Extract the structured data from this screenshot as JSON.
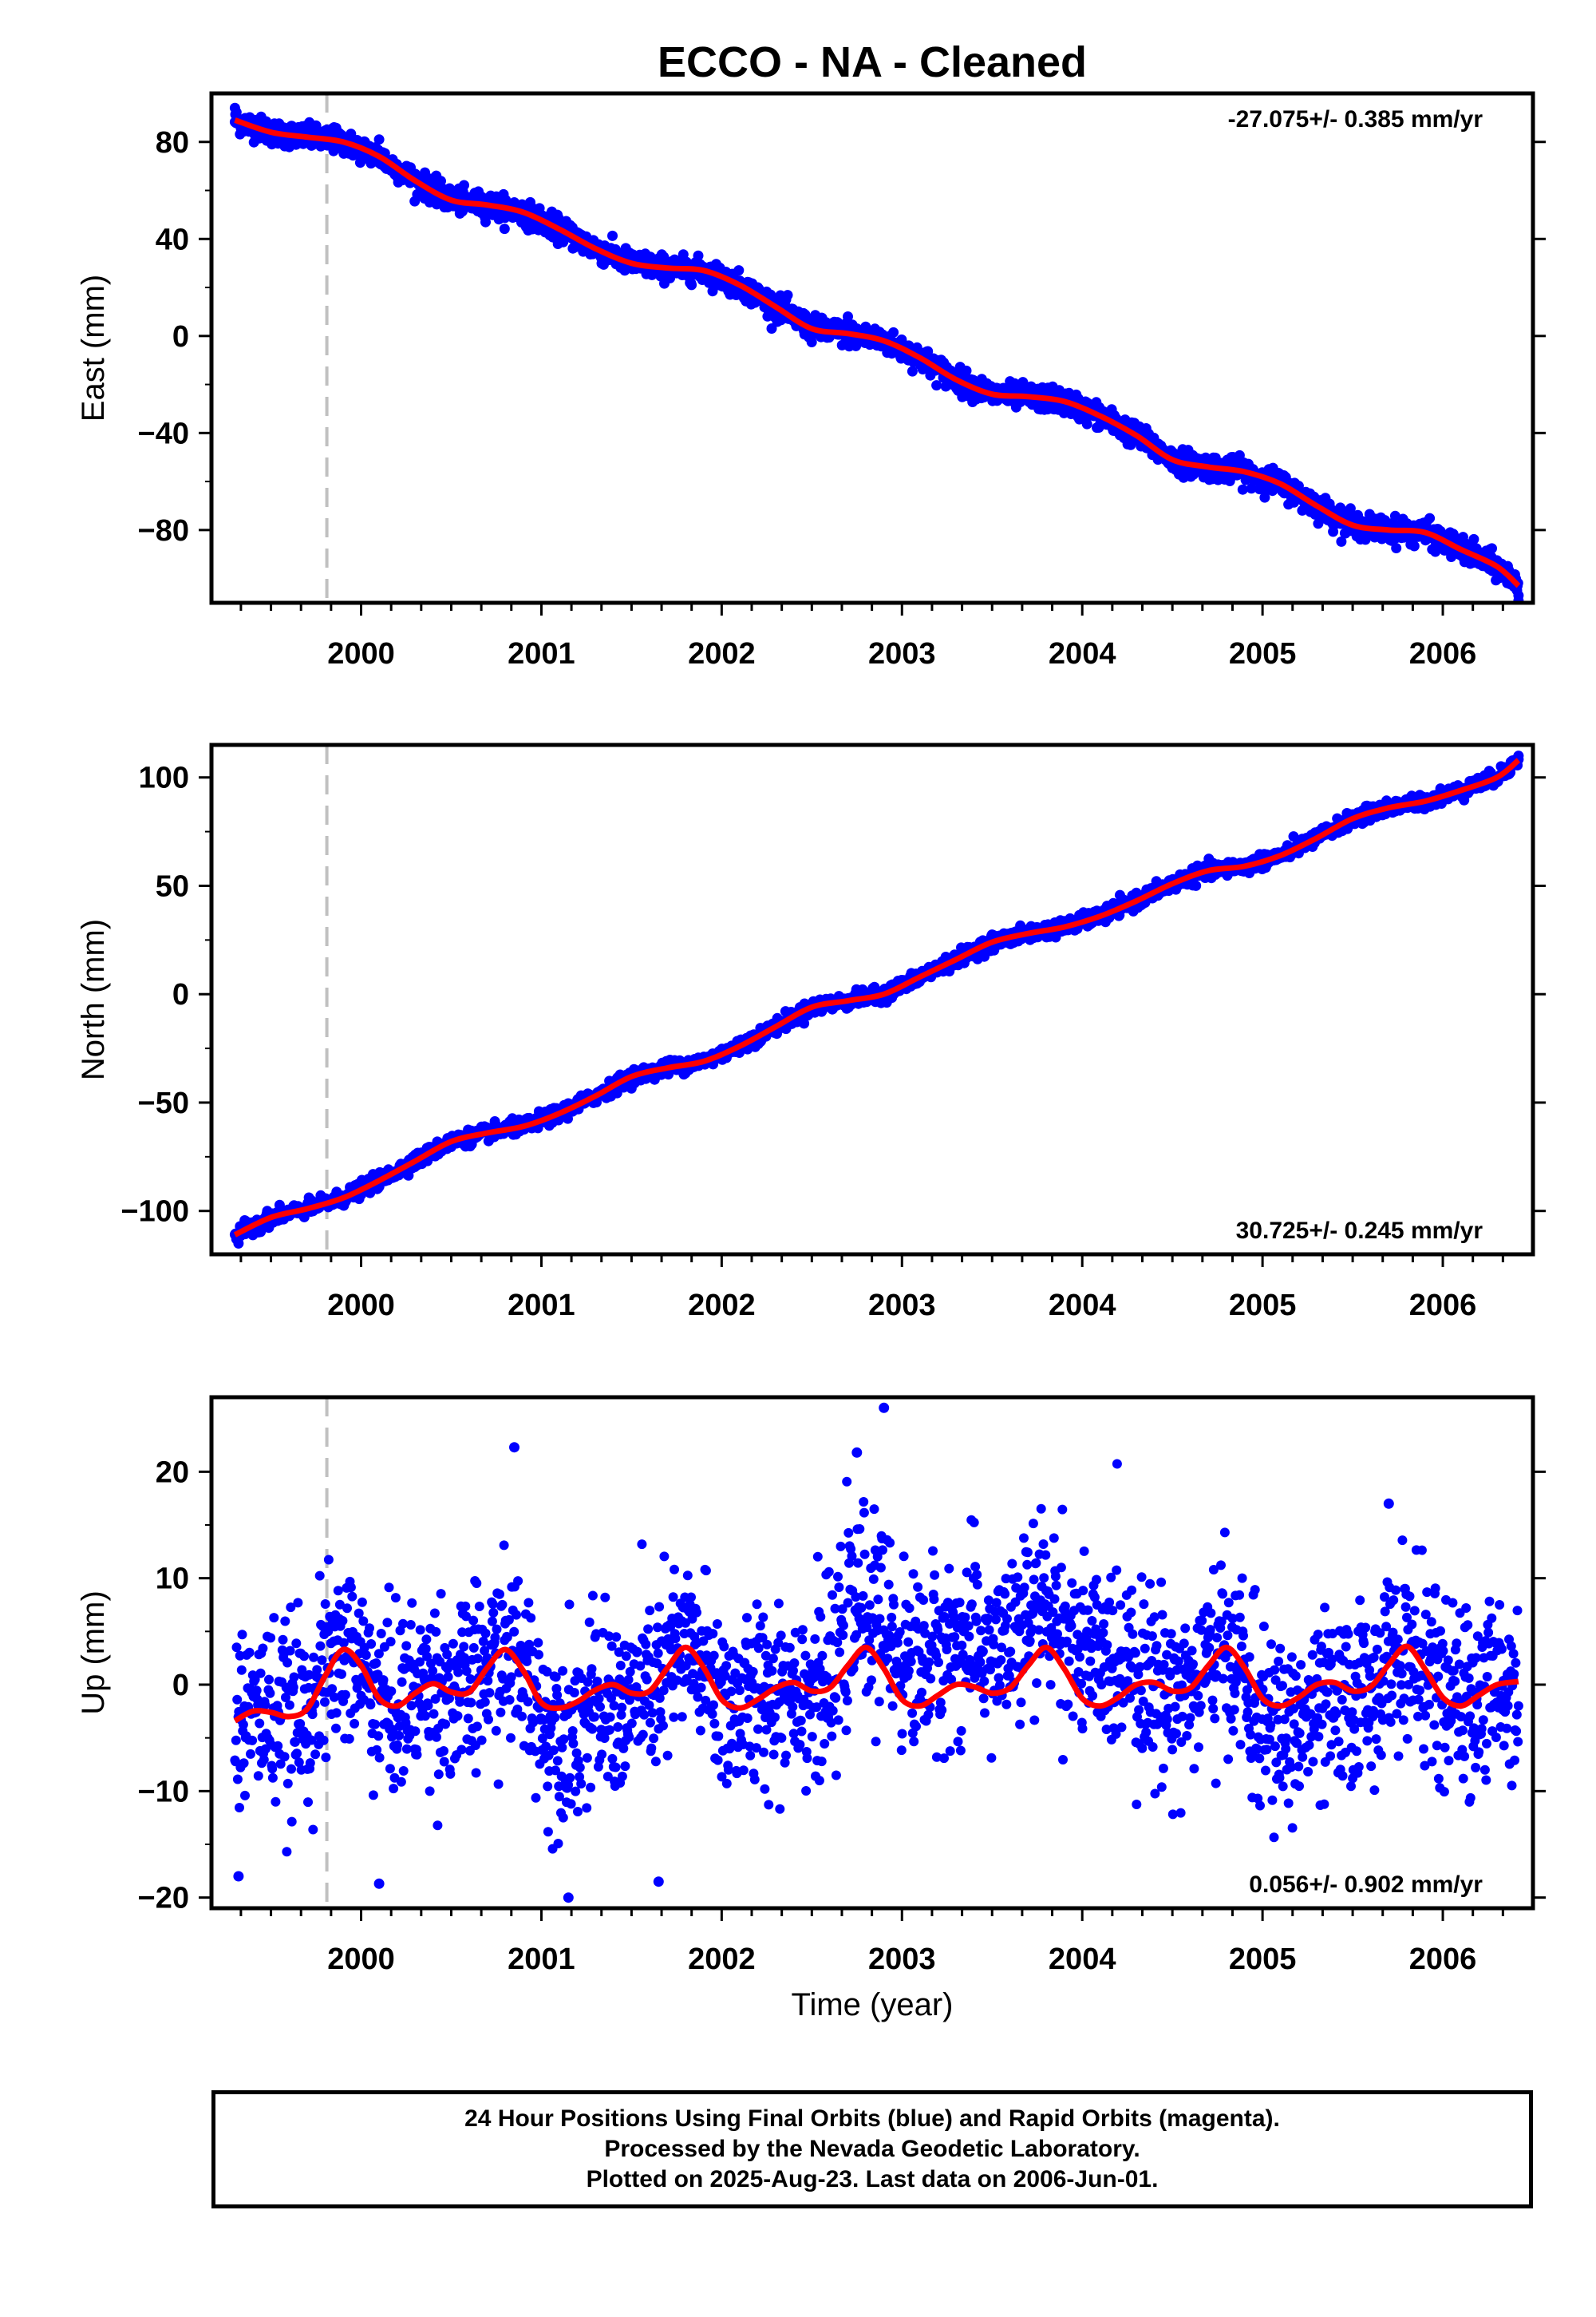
{
  "title": "ECCO  - NA - Cleaned",
  "colors": {
    "points": "#0000ff",
    "fit": "#ff0000",
    "marker": "#c0c0c0",
    "frame": "#000000"
  },
  "chart_data": [
    {
      "type": "scatter",
      "ylabel": "East (mm)",
      "xlabel": "",
      "xlim": [
        1999.17,
        2006.5
      ],
      "ylim": [
        -110,
        100
      ],
      "yticks": [
        -80,
        -40,
        0,
        40,
        80
      ],
      "yticklabels": [
        "−80",
        "−40",
        "0",
        "40",
        "80"
      ],
      "xticks": [
        2000,
        2001,
        2002,
        2003,
        2004,
        2005,
        2006
      ],
      "xticklabels": [
        "2000",
        "2001",
        "2002",
        "2003",
        "2004",
        "2005",
        "2006"
      ],
      "marker_line_x": 1999.81,
      "rate": "-27.075+/- 0.385 mm/yr",
      "rate_position": "top-right",
      "trend_x": [
        1999.3,
        1999.5,
        1999.7,
        1999.9,
        2000.1,
        2000.3,
        2000.5,
        2000.7,
        2000.9,
        2001.1,
        2001.3,
        2001.5,
        2001.7,
        2001.9,
        2002.1,
        2002.3,
        2002.5,
        2002.7,
        2002.9,
        2003.1,
        2003.3,
        2003.5,
        2003.7,
        2003.9,
        2004.1,
        2004.3,
        2004.5,
        2004.7,
        2004.9,
        2005.1,
        2005.3,
        2005.5,
        2005.7,
        2005.9,
        2006.1,
        2006.3,
        2006.42
      ],
      "trend_y": [
        89,
        84,
        82,
        80,
        74,
        64,
        56,
        54,
        51,
        44,
        36,
        30,
        28,
        27,
        21,
        12,
        3,
        1,
        -2,
        -9,
        -18,
        -24,
        -25,
        -27,
        -33,
        -41,
        -51,
        -54,
        -56,
        -61,
        -70,
        -78,
        -80,
        -81,
        -88,
        -95,
        -103
      ],
      "scatter": 4.5,
      "outliers": [
        [
          1999.3,
          94
        ],
        [
          1999.85,
          86
        ],
        [
          2000.1,
          81
        ],
        [
          2002.7,
          8
        ],
        [
          2006.42,
          -107
        ]
      ]
    },
    {
      "type": "scatter",
      "ylabel": "North (mm)",
      "xlabel": "",
      "xlim": [
        1999.17,
        2006.5
      ],
      "ylim": [
        -120,
        115
      ],
      "yticks": [
        -100,
        -50,
        0,
        50,
        100
      ],
      "yticklabels": [
        "−100",
        "−50",
        "0",
        "50",
        "100"
      ],
      "xticks": [
        2000,
        2001,
        2002,
        2003,
        2004,
        2005,
        2006
      ],
      "xticklabels": [
        "2000",
        "2001",
        "2002",
        "2003",
        "2004",
        "2005",
        "2006"
      ],
      "marker_line_x": 1999.81,
      "rate": "30.725+/- 0.245 mm/yr",
      "rate_position": "bottom-right",
      "trend_x": [
        1999.3,
        1999.5,
        1999.7,
        1999.9,
        2000.1,
        2000.3,
        2000.5,
        2000.7,
        2000.9,
        2001.1,
        2001.3,
        2001.5,
        2001.7,
        2001.9,
        2002.1,
        2002.3,
        2002.5,
        2002.7,
        2002.9,
        2003.1,
        2003.3,
        2003.5,
        2003.7,
        2003.9,
        2004.1,
        2004.3,
        2004.5,
        2004.7,
        2004.9,
        2005.1,
        2005.3,
        2005.5,
        2005.7,
        2005.9,
        2006.1,
        2006.3,
        2006.42
      ],
      "trend_y": [
        -111,
        -103,
        -99,
        -94,
        -86,
        -77,
        -68,
        -64,
        -61,
        -55,
        -47,
        -38,
        -34,
        -31,
        -24,
        -15,
        -6,
        -3,
        0,
        8,
        16,
        24,
        28,
        31,
        36,
        43,
        51,
        57,
        59,
        64,
        72,
        81,
        86,
        89,
        94,
        100,
        108
      ],
      "scatter": 3,
      "outliers": [
        [
          1999.32,
          -115
        ],
        [
          2006.42,
          110
        ]
      ]
    },
    {
      "type": "scatter",
      "ylabel": "Up (mm)",
      "xlabel": "Time (year)",
      "xlim": [
        1999.17,
        2006.5
      ],
      "ylim": [
        -21,
        27
      ],
      "yticks": [
        -20,
        -10,
        0,
        10,
        20
      ],
      "yticklabels": [
        "−20",
        "−10",
        "0",
        "10",
        "20"
      ],
      "xticks": [
        2000,
        2001,
        2002,
        2003,
        2004,
        2005,
        2006
      ],
      "xticklabels": [
        "2000",
        "2001",
        "2002",
        "2003",
        "2004",
        "2005",
        "2006"
      ],
      "marker_line_x": 1999.81,
      "rate": "0.056+/- 0.902 mm/yr",
      "rate_position": "bottom-right",
      "trend_x": [
        1999.3,
        1999.4,
        1999.5,
        1999.6,
        1999.7,
        1999.8,
        1999.9,
        2000.0,
        2000.1,
        2000.2,
        2000.3,
        2000.4,
        2000.5,
        2000.6,
        2000.7,
        2000.8,
        2000.9,
        2001.0,
        2001.1,
        2001.2,
        2001.3,
        2001.4,
        2001.5,
        2001.6,
        2001.7,
        2001.8,
        2001.9,
        2002.0,
        2002.1,
        2002.2,
        2002.3,
        2002.4,
        2002.5,
        2002.6,
        2002.7,
        2002.8,
        2002.9,
        2003.0,
        2003.1,
        2003.2,
        2003.3,
        2003.4,
        2003.5,
        2003.6,
        2003.7,
        2003.8,
        2003.9,
        2004.0,
        2004.1,
        2004.2,
        2004.3,
        2004.4,
        2004.5,
        2004.6,
        2004.7,
        2004.8,
        2004.9,
        2005.0,
        2005.1,
        2005.2,
        2005.3,
        2005.4,
        2005.5,
        2005.6,
        2005.7,
        2005.8,
        2005.9,
        2006.0,
        2006.1,
        2006.2,
        2006.3,
        2006.42
      ],
      "trend_y": [
        -3.4,
        -2.5,
        -2.6,
        -3.0,
        -2.3,
        0.8,
        3.3,
        1.8,
        -1.3,
        -2.0,
        -0.8,
        0.1,
        -0.7,
        -0.7,
        1.6,
        3.3,
        1.3,
        -1.7,
        -2.2,
        -1.6,
        -0.5,
        0.0,
        -0.8,
        -0.6,
        1.6,
        3.5,
        1.6,
        -1.4,
        -2.2,
        -1.4,
        -0.3,
        0.2,
        -0.6,
        -0.3,
        1.8,
        3.5,
        1.5,
        -1.4,
        -2.0,
        -1.0,
        0.0,
        -0.2,
        -0.8,
        -0.3,
        1.8,
        3.5,
        1.5,
        -1.3,
        -2.0,
        -1.2,
        0.0,
        0.2,
        -0.6,
        -0.3,
        1.8,
        3.5,
        1.6,
        -1.3,
        -2.0,
        -1.2,
        0.0,
        0.2,
        -0.6,
        -0.2,
        1.9,
        3.6,
        1.5,
        -1.2,
        -2.0,
        -1.0,
        0.0,
        0.3
      ],
      "scatter": 9,
      "outliers": [
        [
          2002.9,
          26
        ],
        [
          2002.75,
          21.8
        ],
        [
          2000.85,
          22.3
        ],
        [
          2005.7,
          17
        ],
        [
          2001.65,
          -18.5
        ],
        [
          2001.15,
          -20
        ],
        [
          1999.32,
          -18
        ],
        [
          2000.1,
          -18.7
        ]
      ]
    }
  ],
  "footer": {
    "line1": "24 Hour Positions Using Final Orbits (blue) and Rapid Orbits (magenta).",
    "line2": "Processed by the Nevada Geodetic Laboratory.",
    "line3": "Plotted on 2025-Aug-23. Last data on 2006-Jun-01."
  }
}
